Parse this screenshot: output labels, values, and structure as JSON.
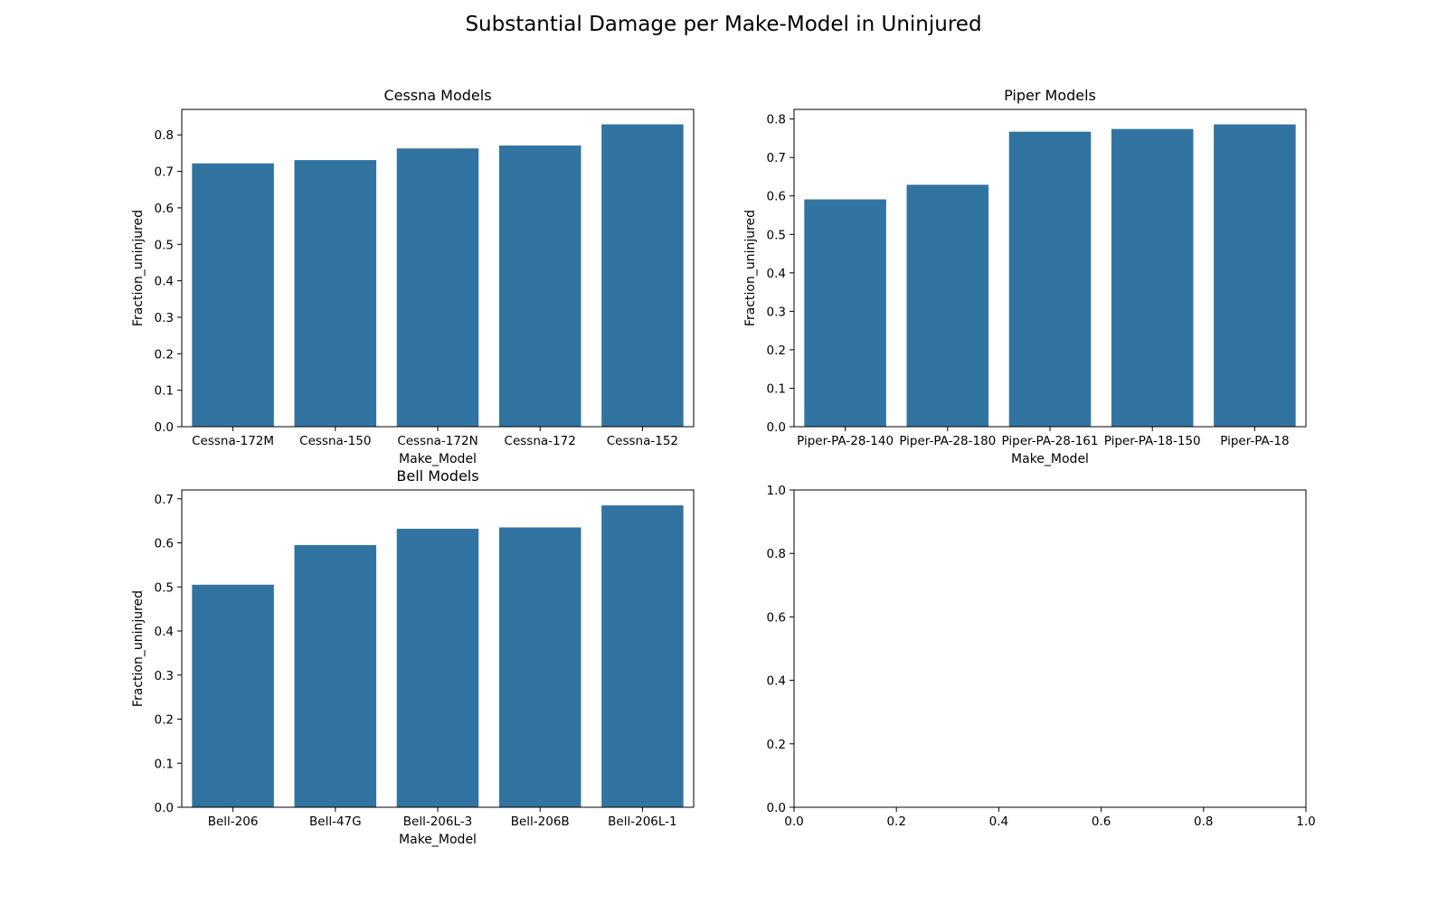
{
  "figure": {
    "suptitle": "Substantial Damage per Make-Model in Uninjured",
    "bar_color": "#3274a1"
  },
  "chart_data": [
    {
      "type": "bar",
      "title": "Cessna Models",
      "xlabel": "Make_Model",
      "ylabel": "Fraction_uninjured",
      "categories": [
        "Cessna-172M",
        "Cessna-150",
        "Cessna-172N",
        "Cessna-172",
        "Cessna-152"
      ],
      "values": [
        0.722,
        0.731,
        0.763,
        0.771,
        0.829
      ],
      "ylim": [
        0,
        0.87
      ],
      "yticks": [
        0.0,
        0.1,
        0.2,
        0.3,
        0.4,
        0.5,
        0.6,
        0.7,
        0.8
      ],
      "ytick_labels": [
        "0.0",
        "0.1",
        "0.2",
        "0.3",
        "0.4",
        "0.5",
        "0.6",
        "0.7",
        "0.8"
      ],
      "grid": false
    },
    {
      "type": "bar",
      "title": "Piper Models",
      "xlabel": "Make_Model",
      "ylabel": "Fraction_uninjured",
      "categories": [
        "Piper-PA-28-140",
        "Piper-PA-28-180",
        "Piper-PA-28-161",
        "Piper-PA-18-150",
        "Piper-PA-18"
      ],
      "values": [
        0.591,
        0.629,
        0.767,
        0.774,
        0.786
      ],
      "ylim": [
        0,
        0.825
      ],
      "yticks": [
        0.0,
        0.1,
        0.2,
        0.3,
        0.4,
        0.5,
        0.6,
        0.7,
        0.8
      ],
      "ytick_labels": [
        "0.0",
        "0.1",
        "0.2",
        "0.3",
        "0.4",
        "0.5",
        "0.6",
        "0.7",
        "0.8"
      ],
      "grid": false
    },
    {
      "type": "bar",
      "title": "Bell Models",
      "xlabel": "Make_Model",
      "ylabel": "Fraction_uninjured",
      "categories": [
        "Bell-206",
        "Bell-47G",
        "Bell-206L-3",
        "Bell-206B",
        "Bell-206L-1"
      ],
      "values": [
        0.505,
        0.595,
        0.632,
        0.635,
        0.685
      ],
      "ylim": [
        0,
        0.72
      ],
      "yticks": [
        0.0,
        0.1,
        0.2,
        0.3,
        0.4,
        0.5,
        0.6,
        0.7
      ],
      "ytick_labels": [
        "0.0",
        "0.1",
        "0.2",
        "0.3",
        "0.4",
        "0.5",
        "0.6",
        "0.7"
      ],
      "grid": false
    },
    {
      "type": "empty",
      "title": "",
      "xlabel": "",
      "ylabel": "",
      "xlim": [
        0,
        1
      ],
      "ylim": [
        0,
        1
      ],
      "xticks": [
        0.0,
        0.2,
        0.4,
        0.6,
        0.8,
        1.0
      ],
      "xtick_labels": [
        "0.0",
        "0.2",
        "0.4",
        "0.6",
        "0.8",
        "1.0"
      ],
      "yticks": [
        0.0,
        0.2,
        0.4,
        0.6,
        0.8,
        1.0
      ],
      "ytick_labels": [
        "0.0",
        "0.2",
        "0.4",
        "0.6",
        "0.8",
        "1.0"
      ],
      "grid": false
    }
  ]
}
